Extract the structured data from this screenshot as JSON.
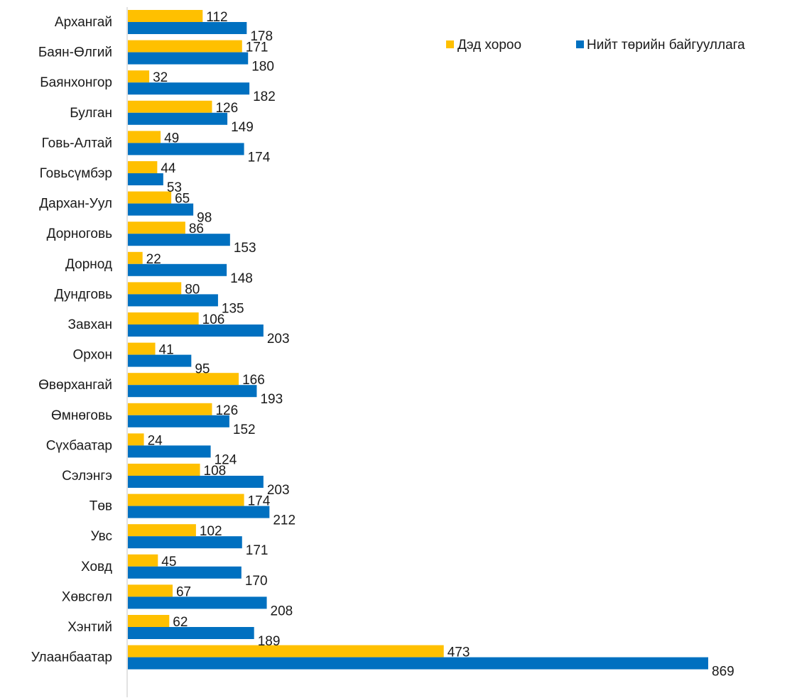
{
  "chart_data": {
    "type": "bar",
    "orientation": "horizontal",
    "categories": [
      "Архангай",
      "Баян-Өлгий",
      "Баянхонгор",
      "Булган",
      "Говь-Алтай",
      "Говьсүмбэр",
      "Дархан-Уул",
      "Дорноговь",
      "Дорнод",
      "Дундговь",
      "Завхан",
      "Орхон",
      "Өвөрхангай",
      "Өмнөговь",
      "Сүхбаатар",
      "Сэлэнгэ",
      "Төв",
      "Увс",
      "Ховд",
      "Хөвсгөл",
      "Хэнтий",
      "Улаанбаатар"
    ],
    "series": [
      {
        "name": "Дэд хороо",
        "color": "#FFC000",
        "values": [
          112,
          171,
          32,
          126,
          49,
          44,
          65,
          86,
          22,
          80,
          106,
          41,
          166,
          126,
          24,
          108,
          174,
          102,
          45,
          67,
          62,
          473
        ]
      },
      {
        "name": "Нийт төрийн байгууллага",
        "color": "#0070C0",
        "values": [
          178,
          180,
          182,
          149,
          174,
          53,
          98,
          153,
          148,
          135,
          203,
          95,
          193,
          152,
          124,
          203,
          212,
          171,
          170,
          208,
          189,
          869
        ]
      }
    ],
    "xlim": [
      0,
      869
    ],
    "grid": false,
    "legend_position": "top-right",
    "axis_color": "#d9d9d9"
  }
}
